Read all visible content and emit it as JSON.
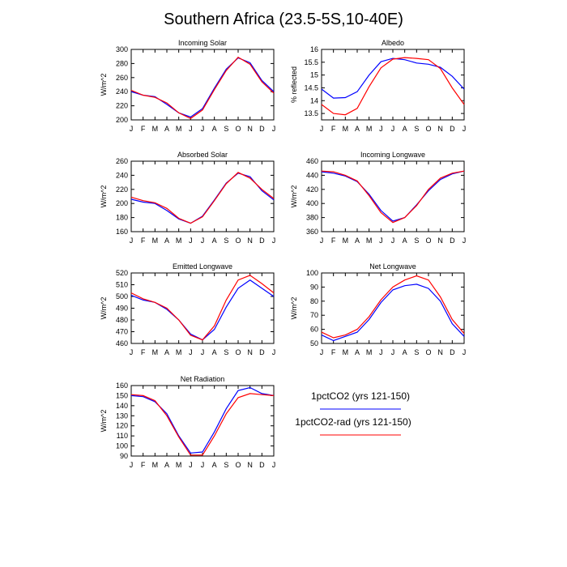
{
  "figure": {
    "title": "Southern Africa (23.5-5S,10-40E)",
    "colors": {
      "series_a": "#0000ff",
      "series_b": "#ff0000",
      "axis": "#000000"
    }
  },
  "legend": {
    "entries": [
      {
        "name": "1pctCO2 (yrs 121-150)",
        "color": "#0000ff"
      },
      {
        "name": "1pctCO2-rad (yrs 121-150)",
        "color": "#ff0000"
      }
    ]
  },
  "chart_data": [
    {
      "type": "line",
      "title": "Incoming Solar",
      "ylabel": "W/m^2",
      "categories": [
        "J",
        "F",
        "M",
        "A",
        "M",
        "J",
        "J",
        "A",
        "S",
        "O",
        "N",
        "D",
        "J"
      ],
      "ylim": [
        200,
        300
      ],
      "yticks": [
        200,
        220,
        240,
        260,
        280,
        300
      ],
      "series": [
        {
          "name": "1pctCO2 (yrs 121-150)",
          "color": "#0000ff",
          "values": [
            240,
            235,
            233,
            222,
            210,
            204,
            216,
            245,
            272,
            288,
            281,
            256,
            240
          ]
        },
        {
          "name": "1pctCO2-rad (yrs 121-150)",
          "color": "#ff0000",
          "values": [
            242,
            235,
            232,
            224,
            210,
            202,
            214,
            243,
            270,
            289,
            279,
            254,
            238
          ]
        }
      ]
    },
    {
      "type": "line",
      "title": "Albedo",
      "ylabel": "% reflected",
      "categories": [
        "J",
        "F",
        "M",
        "A",
        "M",
        "J",
        "J",
        "A",
        "S",
        "O",
        "N",
        "D",
        "J"
      ],
      "ylim": [
        13.25,
        16.0
      ],
      "yticks": [
        13.5,
        14.0,
        14.5,
        15.0,
        15.5,
        16.0
      ],
      "series": [
        {
          "name": "1pctCO2 (yrs 121-150)",
          "color": "#0000ff",
          "values": [
            14.45,
            14.1,
            14.12,
            14.35,
            15.0,
            15.52,
            15.65,
            15.6,
            15.47,
            15.42,
            15.3,
            14.95,
            14.45
          ]
        },
        {
          "name": "1pctCO2-rad (yrs 121-150)",
          "color": "#ff0000",
          "values": [
            13.85,
            13.5,
            13.45,
            13.7,
            14.55,
            15.28,
            15.62,
            15.68,
            15.65,
            15.6,
            15.25,
            14.5,
            13.85
          ]
        }
      ]
    },
    {
      "type": "line",
      "title": "Absorbed Solar",
      "ylabel": "W/m^2",
      "categories": [
        "J",
        "F",
        "M",
        "A",
        "M",
        "J",
        "J",
        "A",
        "S",
        "O",
        "N",
        "D",
        "J"
      ],
      "ylim": [
        160,
        260
      ],
      "yticks": [
        160,
        180,
        200,
        220,
        240,
        260
      ],
      "series": [
        {
          "name": "1pctCO2 (yrs 121-150)",
          "color": "#0000ff",
          "values": [
            206,
            202,
            200,
            190,
            178,
            172,
            182,
            205,
            229,
            243,
            238,
            218,
            205
          ]
        },
        {
          "name": "1pctCO2-rad (yrs 121-150)",
          "color": "#ff0000",
          "values": [
            209,
            204,
            201,
            193,
            179,
            172,
            181,
            204,
            228,
            244,
            236,
            220,
            207
          ]
        }
      ]
    },
    {
      "type": "line",
      "title": "Incoming Longwave",
      "ylabel": "W/m^2",
      "categories": [
        "J",
        "F",
        "M",
        "A",
        "M",
        "J",
        "J",
        "A",
        "S",
        "O",
        "N",
        "D",
        "J"
      ],
      "ylim": [
        360,
        460
      ],
      "yticks": [
        360,
        380,
        400,
        420,
        440,
        460
      ],
      "series": [
        {
          "name": "1pctCO2 (yrs 121-150)",
          "color": "#0000ff",
          "values": [
            445,
            443,
            439,
            431,
            413,
            390,
            375,
            380,
            398,
            418,
            434,
            442,
            446
          ]
        },
        {
          "name": "1pctCO2-rad (yrs 121-150)",
          "color": "#ff0000",
          "values": [
            446,
            445,
            440,
            432,
            411,
            387,
            373,
            380,
            397,
            420,
            436,
            443,
            446
          ]
        }
      ]
    },
    {
      "type": "line",
      "title": "Emitted Longwave",
      "ylabel": "W/m^2",
      "categories": [
        "J",
        "F",
        "M",
        "A",
        "M",
        "J",
        "J",
        "A",
        "S",
        "O",
        "N",
        "D",
        "J"
      ],
      "ylim": [
        460,
        520
      ],
      "yticks": [
        460,
        470,
        480,
        490,
        500,
        510,
        520
      ],
      "series": [
        {
          "name": "1pctCO2 (yrs 121-150)",
          "color": "#0000ff",
          "values": [
            501,
            497,
            495,
            489,
            480,
            468,
            463,
            472,
            491,
            507,
            514,
            507,
            500
          ]
        },
        {
          "name": "1pctCO2-rad (yrs 121-150)",
          "color": "#ff0000",
          "values": [
            503,
            498,
            495,
            490,
            480,
            467,
            463,
            475,
            497,
            514,
            518,
            511,
            503
          ]
        }
      ]
    },
    {
      "type": "line",
      "title": "Net Longwave",
      "ylabel": "W/m^2",
      "categories": [
        "J",
        "F",
        "M",
        "A",
        "M",
        "J",
        "J",
        "A",
        "S",
        "O",
        "N",
        "D",
        "J"
      ],
      "ylim": [
        50,
        100
      ],
      "yticks": [
        50,
        60,
        70,
        80,
        90,
        100
      ],
      "series": [
        {
          "name": "1pctCO2 (yrs 121-150)",
          "color": "#0000ff",
          "values": [
            56,
            52,
            55,
            58,
            67,
            79,
            88,
            91,
            92,
            89,
            80,
            64,
            55
          ]
        },
        {
          "name": "1pctCO2-rad (yrs 121-150)",
          "color": "#ff0000",
          "values": [
            58,
            54,
            56,
            60,
            69,
            81,
            90,
            95,
            98,
            95,
            83,
            67,
            57
          ]
        }
      ]
    },
    {
      "type": "line",
      "title": "Net Radiation",
      "ylabel": "W/m^2",
      "categories": [
        "J",
        "F",
        "M",
        "A",
        "M",
        "J",
        "J",
        "A",
        "S",
        "O",
        "N",
        "D",
        "J"
      ],
      "ylim": [
        90,
        160
      ],
      "yticks": [
        90,
        100,
        110,
        120,
        130,
        140,
        150,
        160
      ],
      "series": [
        {
          "name": "1pctCO2 (yrs 121-150)",
          "color": "#0000ff",
          "values": [
            150,
            149,
            144,
            132,
            110,
            93,
            94,
            114,
            137,
            155,
            158,
            152,
            150
          ]
        },
        {
          "name": "1pctCO2-rad (yrs 121-150)",
          "color": "#ff0000",
          "values": [
            151,
            150,
            145,
            130,
            109,
            91,
            91,
            110,
            132,
            148,
            152,
            151,
            150
          ]
        }
      ]
    }
  ]
}
